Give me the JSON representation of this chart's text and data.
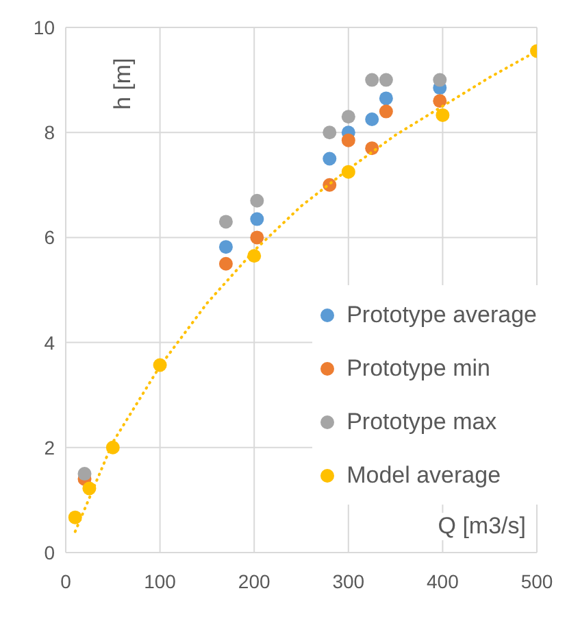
{
  "chart_data": {
    "type": "scatter",
    "xlabel": "Q [m3/s]",
    "ylabel": "h [m]",
    "xlim": [
      0,
      500
    ],
    "xticks": [
      0,
      100,
      200,
      300,
      400,
      500
    ],
    "ylim": [
      0,
      10
    ],
    "yticks": [
      0,
      2,
      4,
      6,
      8,
      10
    ],
    "grid": true,
    "legend": "right",
    "marker": "circle",
    "series": [
      {
        "name": "Prototype average",
        "color": "#5b9bd5",
        "x": [
          170,
          203,
          280,
          300,
          325,
          340,
          397
        ],
        "values": [
          5.82,
          6.35,
          7.5,
          8.0,
          8.25,
          8.65,
          8.85
        ]
      },
      {
        "name": "Prototype min",
        "color": "#ed7d31",
        "x": [
          20,
          170,
          203,
          280,
          300,
          325,
          340,
          397
        ],
        "values": [
          1.4,
          5.5,
          6.0,
          7.0,
          7.85,
          7.7,
          8.4,
          8.6
        ]
      },
      {
        "name": "Prototype max",
        "color": "#a5a5a5",
        "x": [
          20,
          170,
          203,
          280,
          300,
          325,
          340,
          397
        ],
        "values": [
          1.5,
          6.3,
          6.7,
          8.0,
          8.3,
          9.0,
          9.0,
          9.0
        ]
      },
      {
        "name": "Model average",
        "color": "#ffc000",
        "x": [
          10,
          25,
          50,
          100,
          200,
          300,
          400,
          500
        ],
        "values": [
          0.67,
          1.22,
          2.0,
          3.57,
          5.65,
          7.25,
          8.33,
          9.55
        ]
      },
      {
        "type": "line",
        "color": "#ffc000",
        "line_style": "dotted",
        "marker": "none",
        "x": [
          10,
          50,
          100,
          150,
          200,
          250,
          300,
          350,
          400,
          450,
          500
        ],
        "values": [
          0.4,
          2.1,
          3.55,
          4.75,
          5.75,
          6.6,
          7.3,
          7.95,
          8.5,
          9.05,
          9.55
        ]
      }
    ]
  }
}
